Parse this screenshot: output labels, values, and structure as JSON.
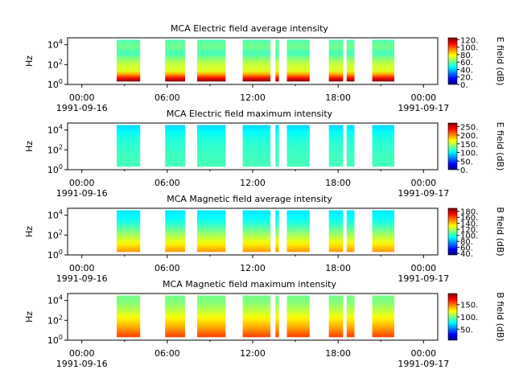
{
  "chart_data": [
    {
      "type": "heatmap",
      "title": "MCA  Electric field average intensity",
      "ylabel": "Hz",
      "colorbar_label": "E field (dB)",
      "colorbar_ticks": [
        "0.",
        "20.",
        "40.",
        "60.",
        "80.",
        "100.",
        "120."
      ],
      "colorbar_range": [
        0,
        125
      ],
      "ylim_exp": [
        0,
        4.7
      ],
      "y_ticks": [
        {
          "base": "10",
          "exp": "0",
          "v": 0
        },
        {
          "base": "10",
          "exp": "2",
          "v": 2
        },
        {
          "base": "10",
          "exp": "4",
          "v": 4
        }
      ],
      "x_ticks": [
        {
          "time": "00:00",
          "date": "1991-09-16",
          "h": 0
        },
        {
          "time": "06:00",
          "date": "",
          "h": 6
        },
        {
          "time": "12:00",
          "date": "",
          "h": 12
        },
        {
          "time": "18:00",
          "date": "",
          "h": 18
        },
        {
          "time": "00:00",
          "date": "1991-09-17",
          "h": 24
        }
      ],
      "xlim_hours": [
        -1,
        25
      ],
      "data_intervals_hours": [
        [
          2.45,
          4.1
        ],
        [
          5.85,
          7.25
        ],
        [
          8.1,
          10.1
        ],
        [
          11.3,
          13.25
        ],
        [
          13.6,
          13.85
        ],
        [
          14.4,
          16.0
        ],
        [
          17.35,
          18.35
        ],
        [
          18.6,
          19.15
        ],
        [
          20.4,
          21.95
        ]
      ],
      "profile_db": [
        [
          0.3,
          125
        ],
        [
          1.3,
          75
        ],
        [
          2.2,
          70
        ],
        [
          3.1,
          55
        ],
        [
          3.9,
          62
        ],
        [
          4.5,
          55
        ]
      ]
    },
    {
      "type": "heatmap",
      "title": "MCA  Electric field maximum intensity",
      "ylabel": "Hz",
      "colorbar_label": "E field (dB)",
      "colorbar_ticks": [
        "0.",
        "50.",
        "100.",
        "150.",
        "200.",
        "250."
      ],
      "colorbar_range": [
        0,
        270
      ],
      "ylim_exp": [
        0,
        4.7
      ],
      "y_ticks": [
        {
          "base": "10",
          "exp": "0",
          "v": 0
        },
        {
          "base": "10",
          "exp": "2",
          "v": 2
        },
        {
          "base": "10",
          "exp": "4",
          "v": 4
        }
      ],
      "x_ticks": [
        {
          "time": "00:00",
          "date": "1991-09-16",
          "h": 0
        },
        {
          "time": "06:00",
          "date": "",
          "h": 6
        },
        {
          "time": "12:00",
          "date": "",
          "h": 12
        },
        {
          "time": "18:00",
          "date": "",
          "h": 18
        },
        {
          "time": "00:00",
          "date": "1991-09-17",
          "h": 24
        }
      ],
      "xlim_hours": [
        -1,
        25
      ],
      "data_intervals_hours": [
        [
          2.45,
          4.1
        ],
        [
          5.85,
          7.25
        ],
        [
          8.1,
          10.1
        ],
        [
          11.3,
          13.25
        ],
        [
          13.6,
          13.85
        ],
        [
          14.4,
          16.0
        ],
        [
          17.35,
          18.35
        ],
        [
          18.6,
          19.15
        ],
        [
          20.4,
          21.95
        ]
      ],
      "profile_db": [
        [
          0.3,
          120
        ],
        [
          1.3,
          118
        ],
        [
          2.2,
          115
        ],
        [
          3.1,
          110
        ],
        [
          3.9,
          100
        ],
        [
          4.5,
          90
        ]
      ]
    },
    {
      "type": "heatmap",
      "title": "MCA  Magnetic field average intensity",
      "ylabel": "Hz",
      "colorbar_label": "B field (dB)",
      "colorbar_ticks": [
        "40.",
        "60.",
        "80.",
        "100.",
        "120.",
        "140.",
        "160.",
        "180."
      ],
      "colorbar_range": [
        35,
        190
      ],
      "ylim_exp": [
        0,
        4.7
      ],
      "y_ticks": [
        {
          "base": "10",
          "exp": "0",
          "v": 0
        },
        {
          "base": "10",
          "exp": "2",
          "v": 2
        },
        {
          "base": "10",
          "exp": "4",
          "v": 4
        }
      ],
      "x_ticks": [
        {
          "time": "00:00",
          "date": "1991-09-16",
          "h": 0
        },
        {
          "time": "06:00",
          "date": "",
          "h": 6
        },
        {
          "time": "12:00",
          "date": "",
          "h": 12
        },
        {
          "time": "18:00",
          "date": "",
          "h": 18
        },
        {
          "time": "00:00",
          "date": "1991-09-17",
          "h": 24
        }
      ],
      "xlim_hours": [
        -1,
        25
      ],
      "data_intervals_hours": [
        [
          2.45,
          4.1
        ],
        [
          5.85,
          7.25
        ],
        [
          8.1,
          10.1
        ],
        [
          11.3,
          13.25
        ],
        [
          13.6,
          13.85
        ],
        [
          14.4,
          16.0
        ],
        [
          17.35,
          18.35
        ],
        [
          18.6,
          19.15
        ],
        [
          20.4,
          21.95
        ]
      ],
      "profile_db": [
        [
          0.3,
          148
        ],
        [
          1.3,
          130
        ],
        [
          2.2,
          115
        ],
        [
          3.1,
          100
        ],
        [
          3.9,
          92
        ],
        [
          4.5,
          90
        ]
      ]
    },
    {
      "type": "heatmap",
      "title": "MCA  Magnetic field maximum intensity",
      "ylabel": "Hz",
      "colorbar_label": "B field (dB)",
      "colorbar_ticks": [
        "50.",
        "100.",
        "150."
      ],
      "colorbar_range": [
        5,
        195
      ],
      "ylim_exp": [
        0,
        4.7
      ],
      "y_ticks": [
        {
          "base": "10",
          "exp": "0",
          "v": 0
        },
        {
          "base": "10",
          "exp": "2",
          "v": 2
        },
        {
          "base": "10",
          "exp": "4",
          "v": 4
        }
      ],
      "x_ticks": [
        {
          "time": "00:00",
          "date": "1991-09-16",
          "h": 0
        },
        {
          "time": "06:00",
          "date": "",
          "h": 6
        },
        {
          "time": "12:00",
          "date": "",
          "h": 12
        },
        {
          "time": "18:00",
          "date": "",
          "h": 18
        },
        {
          "time": "00:00",
          "date": "1991-09-17",
          "h": 24
        }
      ],
      "xlim_hours": [
        -1,
        25
      ],
      "data_intervals_hours": [
        [
          2.45,
          4.1
        ],
        [
          5.85,
          7.25
        ],
        [
          8.1,
          10.1
        ],
        [
          11.3,
          13.25
        ],
        [
          13.6,
          13.85
        ],
        [
          14.4,
          16.0
        ],
        [
          17.35,
          18.35
        ],
        [
          18.6,
          19.15
        ],
        [
          20.4,
          21.95
        ]
      ],
      "profile_db": [
        [
          0.3,
          160
        ],
        [
          1.3,
          140
        ],
        [
          2.2,
          125
        ],
        [
          3.1,
          110
        ],
        [
          3.9,
          100
        ],
        [
          4.5,
          98
        ]
      ]
    }
  ]
}
